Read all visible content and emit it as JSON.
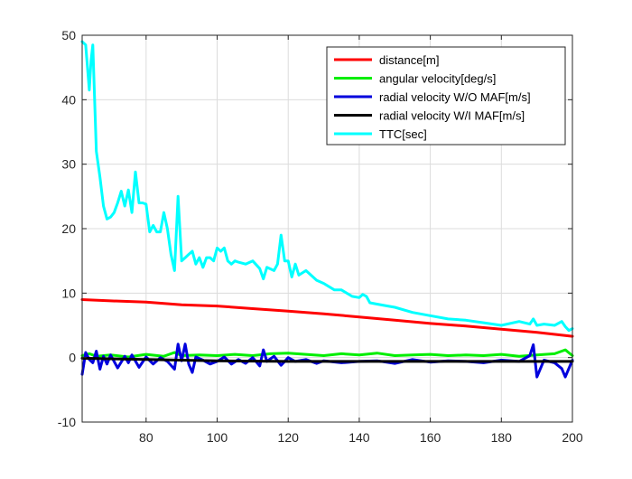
{
  "chart_data": {
    "type": "line",
    "xlim": [
      62,
      200
    ],
    "ylim": [
      -10,
      50
    ],
    "x_ticks": [
      80,
      100,
      120,
      140,
      160,
      180,
      200
    ],
    "y_ticks": [
      -10,
      0,
      10,
      20,
      30,
      40,
      50
    ],
    "grid": true,
    "legend_position": "top-right",
    "series": [
      {
        "name": "distance[m]",
        "color": "#ff0000",
        "x": [
          62,
          70,
          80,
          90,
          100,
          110,
          120,
          130,
          140,
          150,
          160,
          170,
          180,
          190,
          200
        ],
        "y": [
          9.0,
          8.8,
          8.6,
          8.2,
          8.0,
          7.6,
          7.2,
          6.8,
          6.3,
          5.8,
          5.3,
          4.9,
          4.4,
          3.9,
          3.3
        ]
      },
      {
        "name": "angular velocity[deg/s]",
        "color": "#00ee00",
        "x": [
          62,
          64,
          66,
          70,
          75,
          80,
          85,
          88,
          90,
          95,
          100,
          105,
          110,
          115,
          120,
          125,
          130,
          135,
          140,
          145,
          150,
          155,
          160,
          165,
          170,
          175,
          180,
          185,
          190,
          195,
          198,
          200
        ],
        "y": [
          0.3,
          0.6,
          0.2,
          0.4,
          0.1,
          0.5,
          0.2,
          0.8,
          0.3,
          0.4,
          0.3,
          0.5,
          0.3,
          0.6,
          0.7,
          0.5,
          0.3,
          0.6,
          0.4,
          0.7,
          0.3,
          0.4,
          0.5,
          0.3,
          0.4,
          0.3,
          0.5,
          0.2,
          0.4,
          0.6,
          1.2,
          0.3
        ]
      },
      {
        "name": "radial velocity W/O MAF[m/s]",
        "color": "#0000dd",
        "x": [
          62,
          63,
          64,
          65,
          66,
          67,
          68,
          69,
          70,
          72,
          74,
          75,
          76,
          78,
          80,
          82,
          84,
          86,
          88,
          89,
          90,
          91,
          92,
          93,
          94,
          96,
          98,
          100,
          102,
          104,
          106,
          108,
          110,
          112,
          113,
          114,
          116,
          118,
          120,
          122,
          125,
          128,
          130,
          135,
          140,
          145,
          150,
          155,
          160,
          165,
          170,
          175,
          180,
          185,
          188,
          189,
          190,
          192,
          195,
          197,
          198,
          200
        ],
        "y": [
          -2.6,
          0.8,
          -0.3,
          -0.8,
          1.0,
          -1.8,
          0.2,
          -1.0,
          0.4,
          -1.6,
          0.2,
          -0.8,
          0.4,
          -1.5,
          0.1,
          -1.0,
          0.0,
          -0.6,
          -1.8,
          2.1,
          -0.5,
          2.1,
          -1.0,
          -2.3,
          0.1,
          -0.4,
          -1.0,
          -0.6,
          0.1,
          -1.0,
          -0.3,
          -0.9,
          0.0,
          -1.3,
          1.2,
          -0.6,
          0.2,
          -1.2,
          0.0,
          -0.6,
          -0.3,
          -0.9,
          -0.5,
          -0.8,
          -0.6,
          -0.5,
          -0.9,
          -0.3,
          -0.7,
          -0.5,
          -0.6,
          -0.8,
          -0.4,
          -0.6,
          0.3,
          2.0,
          -3.0,
          -0.4,
          -0.8,
          -1.7,
          -3.0,
          -0.4
        ]
      },
      {
        "name": "radial velocity W/I MAF[m/s]",
        "color": "#000000",
        "x": [
          62,
          80,
          100,
          120,
          140,
          160,
          180,
          200
        ],
        "y": [
          -0.1,
          -0.3,
          -0.5,
          -0.6,
          -0.6,
          -0.6,
          -0.6,
          -0.6
        ]
      },
      {
        "name": "TTC[sec]",
        "color": "#00ffff",
        "x": [
          62,
          63,
          64,
          64.5,
          65,
          66,
          67,
          68,
          69,
          70,
          71,
          72,
          73,
          74,
          75,
          76,
          77,
          78,
          79,
          80,
          81,
          82,
          83,
          84,
          85,
          86,
          87,
          88,
          89,
          90,
          91,
          92,
          93,
          94,
          95,
          96,
          97,
          98,
          99,
          100,
          101,
          102,
          103,
          104,
          105,
          106,
          108,
          110,
          112,
          113,
          114,
          116,
          117,
          118,
          119,
          120,
          121,
          122,
          123,
          125,
          128,
          130,
          133,
          135,
          138,
          140,
          141,
          142,
          143,
          145,
          148,
          150,
          155,
          160,
          165,
          170,
          175,
          180,
          185,
          188,
          189,
          190,
          192,
          195,
          197,
          198,
          199,
          200
        ],
        "y": [
          49.0,
          48.5,
          41.5,
          46.0,
          48.5,
          32.0,
          28.0,
          23.5,
          21.5,
          21.8,
          22.5,
          24.0,
          25.8,
          23.5,
          26.0,
          22.5,
          28.8,
          24.0,
          24.0,
          23.8,
          19.5,
          20.5,
          19.5,
          19.5,
          22.5,
          20.0,
          16.0,
          13.5,
          25.0,
          15.0,
          15.5,
          16.0,
          16.5,
          14.5,
          15.5,
          14.0,
          15.5,
          15.5,
          15.0,
          17.0,
          16.5,
          17.0,
          15.0,
          14.5,
          15.0,
          14.8,
          14.5,
          15.0,
          13.8,
          12.2,
          14.0,
          13.5,
          14.5,
          19.0,
          15.0,
          15.0,
          12.5,
          14.5,
          12.8,
          13.5,
          12.0,
          11.5,
          10.5,
          10.5,
          9.5,
          9.3,
          9.8,
          9.5,
          8.5,
          8.3,
          8.0,
          7.8,
          7.0,
          6.5,
          6.0,
          5.8,
          5.4,
          5.0,
          5.6,
          5.2,
          6.0,
          5.0,
          5.2,
          5.0,
          5.6,
          4.8,
          4.2,
          4.5
        ]
      }
    ]
  }
}
